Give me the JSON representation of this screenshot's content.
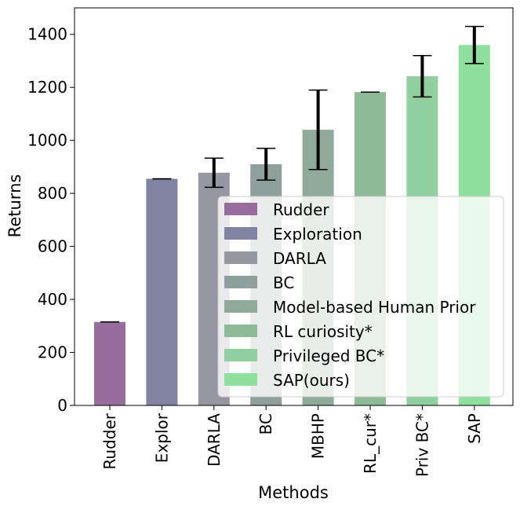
{
  "chart_data": {
    "type": "bar",
    "title": "",
    "xlabel": "Methods",
    "ylabel": "Returns",
    "ylim": [
      0,
      1500
    ],
    "yticks": [
      0,
      200,
      400,
      600,
      800,
      1000,
      1200,
      1400
    ],
    "grid": false,
    "legend_position": "lower-right",
    "categories": [
      "Rudder",
      "Explor",
      "DARLA",
      "BC",
      "MBHP",
      "RL_cur*",
      "Priv BC*",
      "SAP"
    ],
    "series": [
      {
        "name": "Returns",
        "values": [
          315,
          855,
          878,
          910,
          1040,
          1182,
          1242,
          1360
        ],
        "error": [
          0,
          0,
          55,
          60,
          150,
          0,
          78,
          70
        ]
      }
    ],
    "legend": [
      "Rudder",
      "Exploration",
      "DARLA",
      "BC",
      "Model-based Human Prior",
      "RL curiosity*",
      "Privileged BC*",
      "SAP(ours)"
    ],
    "colors": [
      "#986d9e",
      "#8184a0",
      "#9797a3",
      "#8f9f9b",
      "#8faa98",
      "#8fba98",
      "#90cf9e",
      "#8fdf9d"
    ]
  }
}
